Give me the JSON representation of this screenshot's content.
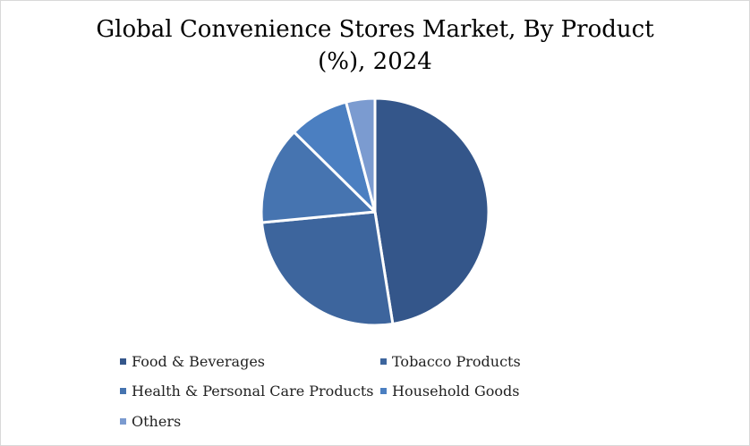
{
  "chart_data": {
    "type": "pie",
    "title": "Global Convenience Stores Market, By Product",
    "subtitle": "(%), 2024",
    "categories": [
      "Food & Beverages",
      "Tobacco Products",
      "Health & Personal Care Products",
      "Household Goods",
      "Others"
    ],
    "values": [
      47.5,
      26.0,
      13.9,
      8.5,
      4.1
    ],
    "colors": [
      "#34568a",
      "#3d659d",
      "#4674b0",
      "#4b7fc1",
      "#7b9bd0"
    ],
    "slice_border": "#ffffff",
    "legend_position": "bottom"
  }
}
